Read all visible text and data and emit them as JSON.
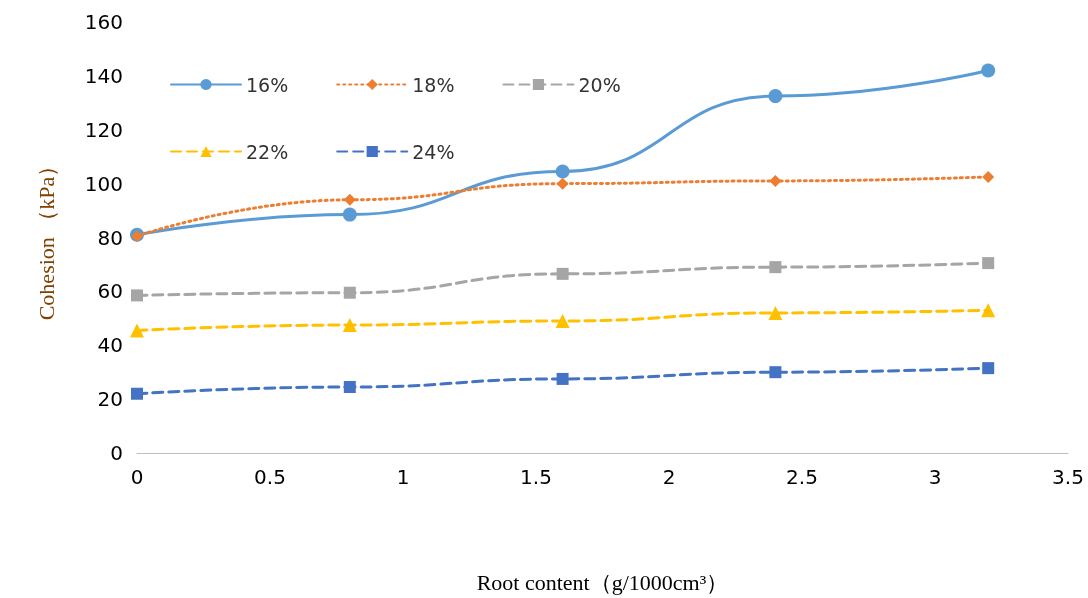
{
  "chart_data": {
    "type": "line",
    "xlabel": "Root content（g/1000cm³）",
    "ylabel": "Cohesion （kPa）",
    "x": [
      0,
      0.8,
      1.6,
      2.4,
      3.2
    ],
    "xlim": [
      0,
      3.5
    ],
    "xticks": [
      0,
      0.5,
      1,
      1.5,
      2,
      2.5,
      3,
      3.5
    ],
    "ylim": [
      0,
      160
    ],
    "yticks": [
      0,
      20,
      40,
      60,
      80,
      100,
      120,
      140,
      160
    ],
    "grid": false,
    "legend": "top left",
    "series": [
      {
        "name": "16%",
        "color": "#5b9bd5",
        "marker": "circle",
        "line_style": "solid",
        "values": [
          81,
          88.5,
          104.5,
          132.5,
          142
        ]
      },
      {
        "name": "18%",
        "color": "#ed7d31",
        "marker": "diamond",
        "line_style": "dotted",
        "values": [
          80.5,
          94,
          100,
          101,
          102.5
        ]
      },
      {
        "name": "20%",
        "color": "#a5a5a5",
        "marker": "square",
        "line_style": "dashed",
        "values": [
          58.5,
          59.5,
          66.5,
          69,
          70.5
        ]
      },
      {
        "name": "22%",
        "color": "#ffc000",
        "marker": "triangle",
        "line_style": "dashed",
        "values": [
          45.5,
          47.5,
          49,
          52,
          53
        ]
      },
      {
        "name": "24%",
        "color": "#4472c4",
        "marker": "square",
        "line_style": "dashed",
        "values": [
          22,
          24.5,
          27.5,
          30,
          31.5
        ]
      }
    ]
  }
}
